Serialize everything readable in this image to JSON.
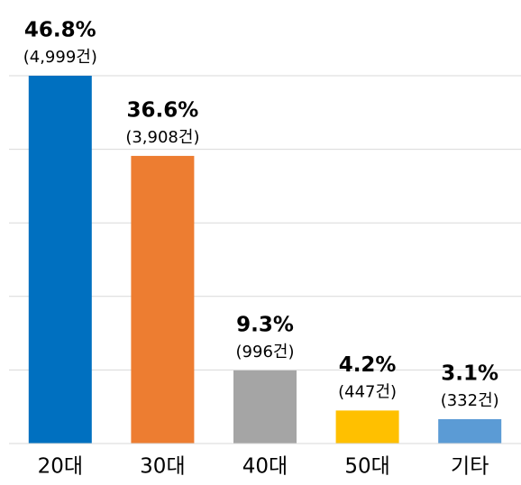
{
  "chart_data": {
    "type": "bar",
    "categories": [
      "20대",
      "30대",
      "40대",
      "50대",
      "기타"
    ],
    "values": [
      46.8,
      36.6,
      9.3,
      4.2,
      3.1
    ],
    "value_labels": [
      "46.8%",
      "36.6%",
      "9.3%",
      "4.2%",
      "3.1%"
    ],
    "count_labels": [
      "(4,999건)",
      "(3,908건)",
      "(996건)",
      "(447건)",
      "(332건)"
    ],
    "colors": [
      "#0070c0",
      "#ed7d31",
      "#a5a5a5",
      "#ffc000",
      "#5b9bd5"
    ],
    "ylim": [
      0,
      46.8
    ],
    "grid": true
  }
}
